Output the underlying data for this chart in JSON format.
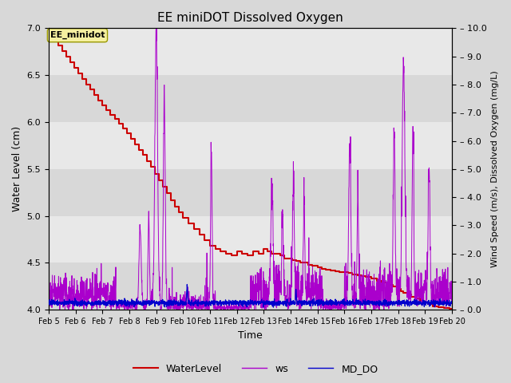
{
  "title": "EE miniDOT Dissolved Oxygen",
  "xlabel": "Time",
  "ylabel_left": "Water Level (cm)",
  "ylabel_right": "Wind Speed (m/s), Dissolved Oxygen (mg/L)",
  "annotation": "EE_minidot",
  "ylim_left": [
    4.0,
    7.0
  ],
  "ylim_right": [
    0.0,
    10.0
  ],
  "yticks_left": [
    4.0,
    4.5,
    5.0,
    5.5,
    6.0,
    6.5,
    7.0
  ],
  "yticks_right": [
    0.0,
    1.0,
    2.0,
    3.0,
    4.0,
    5.0,
    6.0,
    7.0,
    8.0,
    9.0,
    10.0
  ],
  "ytick_labels_right": [
    "0.0",
    "1.0",
    "2.0",
    "3.0",
    "4.0",
    "5.0",
    "6.0",
    "7.0",
    "8.0",
    "9.0",
    "10.0"
  ],
  "date_start": 5,
  "date_end": 20,
  "bg_color": "#d8d8d8",
  "band_colors": [
    "#d8d8d8",
    "#e8e8e8"
  ],
  "legend_items": [
    "WaterLevel",
    "ws",
    "MD_DO"
  ],
  "line_colors": {
    "WaterLevel": "#cc0000",
    "ws": "#aa00cc",
    "MD_DO": "#0000cc"
  },
  "figsize": [
    6.4,
    4.8
  ],
  "dpi": 100
}
